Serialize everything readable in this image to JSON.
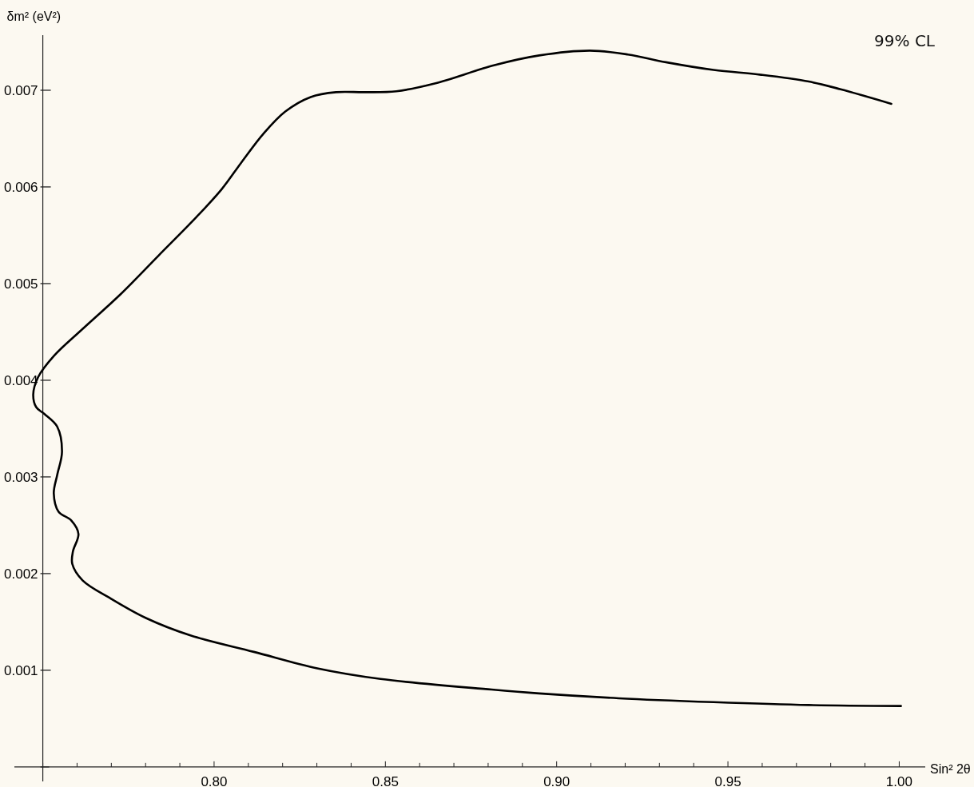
{
  "chart_data": {
    "type": "line",
    "xlabel": "Sin² 2θ",
    "ylabel": "δm² (eV²)",
    "annotations": [
      "99% CL"
    ],
    "xlim": [
      0.7417,
      1.0076
    ],
    "ylim": [
      -0.00015,
      0.00757
    ],
    "xticks": [
      {
        "value": 0.75,
        "label": null
      },
      {
        "value": 0.76,
        "label": null
      },
      {
        "value": 0.77,
        "label": null
      },
      {
        "value": 0.78,
        "label": null
      },
      {
        "value": 0.79,
        "label": null
      },
      {
        "value": 0.8,
        "label": "0.80"
      },
      {
        "value": 0.81,
        "label": null
      },
      {
        "value": 0.82,
        "label": null
      },
      {
        "value": 0.83,
        "label": null
      },
      {
        "value": 0.84,
        "label": null
      },
      {
        "value": 0.85,
        "label": "0.85"
      },
      {
        "value": 0.86,
        "label": null
      },
      {
        "value": 0.87,
        "label": null
      },
      {
        "value": 0.88,
        "label": null
      },
      {
        "value": 0.89,
        "label": null
      },
      {
        "value": 0.9,
        "label": "0.90"
      },
      {
        "value": 0.91,
        "label": null
      },
      {
        "value": 0.92,
        "label": null
      },
      {
        "value": 0.93,
        "label": null
      },
      {
        "value": 0.94,
        "label": null
      },
      {
        "value": 0.95,
        "label": "0.95"
      },
      {
        "value": 0.96,
        "label": null
      },
      {
        "value": 0.97,
        "label": null
      },
      {
        "value": 0.98,
        "label": null
      },
      {
        "value": 0.99,
        "label": null
      },
      {
        "value": 1.0,
        "label": "1.00"
      }
    ],
    "yticks": [
      {
        "value": 0,
        "label": null
      },
      0.001,
      0.002,
      0.003,
      0.004,
      0.005,
      0.006,
      0.007
    ],
    "series": [
      {
        "color": "#000000",
        "x": [
          0.9977,
          0.9829,
          0.9736,
          0.9597,
          0.9458,
          0.9319,
          0.9208,
          0.9097,
          0.8949,
          0.8819,
          0.8644,
          0.8532,
          0.844,
          0.8356,
          0.8282,
          0.8208,
          0.8144,
          0.8079,
          0.8023,
          0.7949,
          0.7838,
          0.7727,
          0.7616,
          0.7532,
          0.7486,
          0.7472,
          0.7481,
          0.7505,
          0.7542,
          0.7556,
          0.7542,
          0.7532,
          0.7546,
          0.7583,
          0.7604,
          0.7588,
          0.7586,
          0.7616,
          0.7699,
          0.7801,
          0.7931,
          0.8116,
          0.8301,
          0.8486,
          0.881,
          0.8949,
          0.9181,
          0.9458,
          0.9736,
          1.0005
        ],
        "values": [
          0.00686,
          0.00701,
          0.00709,
          0.00716,
          0.00721,
          0.00729,
          0.00737,
          0.00741,
          0.00736,
          0.00726,
          0.00707,
          0.00699,
          0.00698,
          0.00698,
          0.00693,
          0.00678,
          0.00655,
          0.00625,
          0.00598,
          0.00569,
          0.00529,
          0.00489,
          0.00453,
          0.00425,
          0.00403,
          0.00385,
          0.00372,
          0.00365,
          0.00352,
          0.00326,
          0.00302,
          0.00283,
          0.00264,
          0.00255,
          0.00241,
          0.00223,
          0.0021,
          0.00193,
          0.00174,
          0.00154,
          0.00136,
          0.00119,
          0.00102,
          0.00091,
          0.0008,
          0.00076,
          0.00071,
          0.00067,
          0.00064,
          0.00063
        ]
      }
    ]
  }
}
